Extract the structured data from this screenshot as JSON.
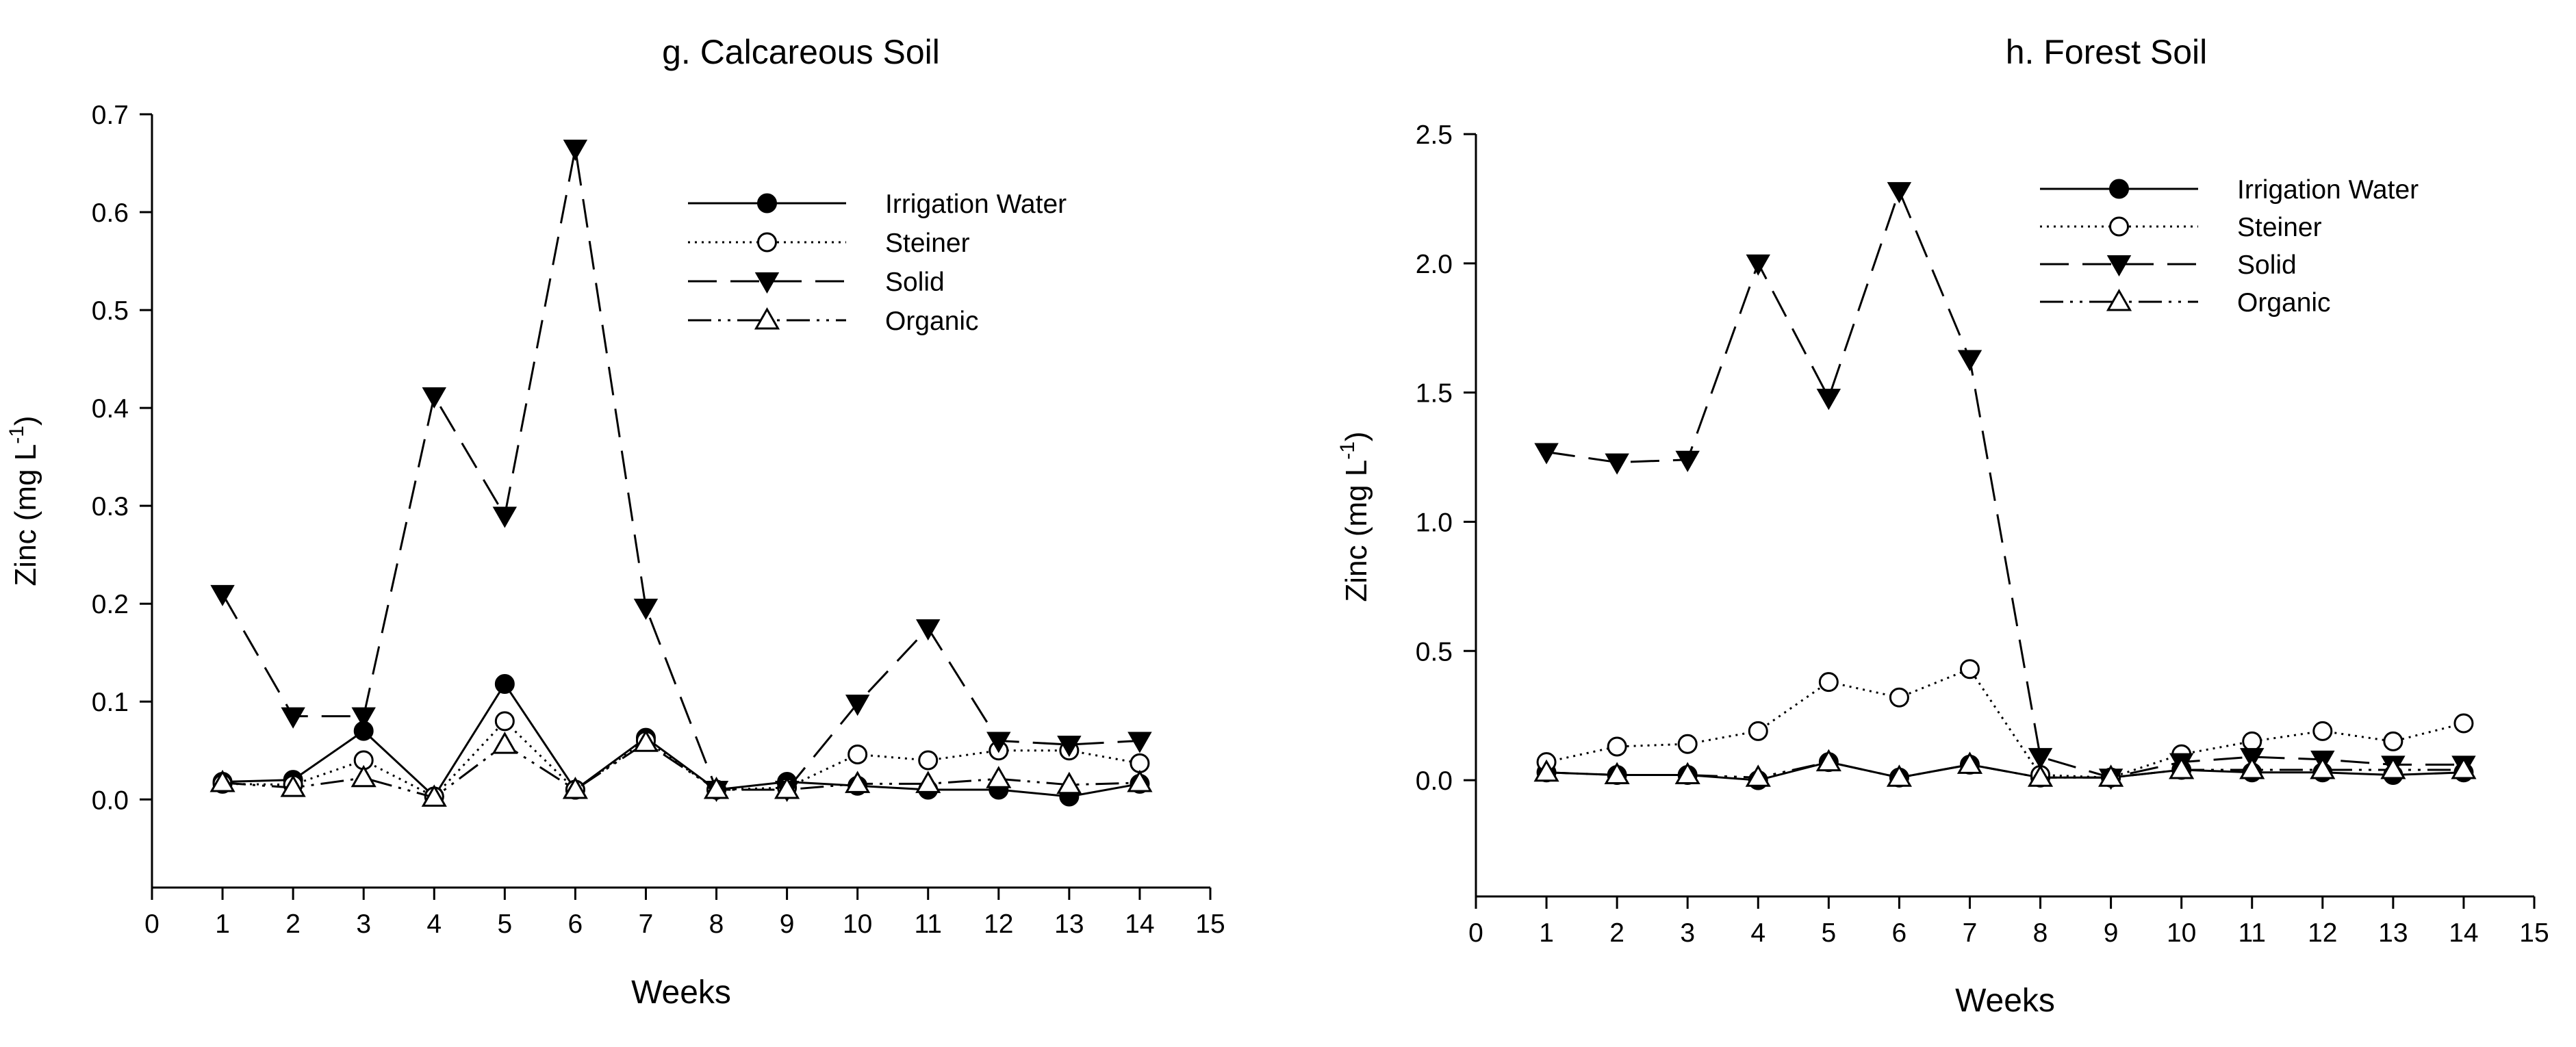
{
  "chart_data": [
    {
      "type": "line",
      "title": "g. Calcareous Soil",
      "xlabel": "Weeks",
      "ylabel": "Zinc (mg L",
      "ylabel_sup": "-1",
      "ylabel_close": ")",
      "xlim": [
        0,
        15
      ],
      "ylim": [
        -0.09,
        0.7
      ],
      "xticks": [
        "0",
        "1",
        "2",
        "3",
        "4",
        "5",
        "6",
        "7",
        "8",
        "9",
        "10",
        "11",
        "12",
        "13",
        "14",
        "15"
      ],
      "yticks": [
        "0.0",
        "0.1",
        "0.2",
        "0.3",
        "0.4",
        "0.5",
        "0.6",
        "0.7"
      ],
      "grid": false,
      "legend_position": "top-right",
      "x": [
        1,
        2,
        3,
        4,
        5,
        6,
        7,
        8,
        9,
        10,
        11,
        12,
        13,
        14
      ],
      "series": [
        {
          "name": "Irrigation Water",
          "marker": "filled-circle",
          "dash": "solid",
          "values": [
            0.018,
            0.02,
            0.07,
            0.003,
            0.118,
            0.01,
            0.063,
            0.01,
            0.018,
            0.014,
            0.01,
            0.01,
            0.003,
            0.016
          ]
        },
        {
          "name": "Steiner",
          "marker": "open-circle",
          "dash": "dotted",
          "values": [
            0.016,
            0.015,
            0.04,
            0.003,
            0.08,
            0.01,
            0.06,
            0.01,
            0.012,
            0.046,
            0.04,
            0.05,
            0.05,
            0.037
          ]
        },
        {
          "name": "Solid",
          "marker": "filled-triangle-down",
          "dash": "dashed",
          "values": [
            0.21,
            0.085,
            0.085,
            0.412,
            0.29,
            0.665,
            0.196,
            0.01,
            0.01,
            0.098,
            0.175,
            0.06,
            0.056,
            0.06
          ]
        },
        {
          "name": "Organic",
          "marker": "open-triangle-up",
          "dash": "dash-dot-dot",
          "values": [
            0.017,
            0.012,
            0.022,
            0.002,
            0.056,
            0.01,
            0.058,
            0.01,
            0.01,
            0.016,
            0.016,
            0.021,
            0.015,
            0.017
          ]
        }
      ]
    },
    {
      "type": "line",
      "title": "h. Forest Soil",
      "xlabel": "Weeks",
      "ylabel": "Zinc (mg L",
      "ylabel_sup": "-1",
      "ylabel_close": ")",
      "xlim": [
        0,
        15
      ],
      "ylim": [
        -0.45,
        2.5
      ],
      "xticks": [
        "0",
        "1",
        "2",
        "3",
        "4",
        "5",
        "6",
        "7",
        "8",
        "9",
        "10",
        "11",
        "12",
        "13",
        "14",
        "15"
      ],
      "yticks": [
        "0.0",
        "0.5",
        "1.0",
        "1.5",
        "2.0",
        "2.5"
      ],
      "grid": false,
      "legend_position": "top-right",
      "x": [
        1,
        2,
        3,
        4,
        5,
        6,
        7,
        8,
        9,
        10,
        11,
        12,
        13,
        14
      ],
      "series": [
        {
          "name": "Irrigation Water",
          "marker": "filled-circle",
          "dash": "solid",
          "values": [
            0.03,
            0.02,
            0.02,
            0.0,
            0.07,
            0.01,
            0.06,
            0.01,
            0.01,
            0.04,
            0.03,
            0.03,
            0.02,
            0.03
          ]
        },
        {
          "name": "Steiner",
          "marker": "open-circle",
          "dash": "dotted",
          "values": [
            0.07,
            0.13,
            0.14,
            0.19,
            0.38,
            0.32,
            0.43,
            0.02,
            0.01,
            0.1,
            0.15,
            0.19,
            0.15,
            0.22
          ]
        },
        {
          "name": "Solid",
          "marker": "filled-triangle-down",
          "dash": "dashed",
          "values": [
            1.27,
            1.23,
            1.24,
            2.0,
            1.48,
            2.28,
            1.63,
            0.09,
            0.01,
            0.07,
            0.09,
            0.08,
            0.06,
            0.06
          ]
        },
        {
          "name": "Organic",
          "marker": "open-triangle-up",
          "dash": "dash-dot-dot",
          "values": [
            0.03,
            0.02,
            0.02,
            0.01,
            0.07,
            0.01,
            0.06,
            0.01,
            0.01,
            0.04,
            0.04,
            0.04,
            0.04,
            0.04
          ]
        }
      ]
    }
  ]
}
